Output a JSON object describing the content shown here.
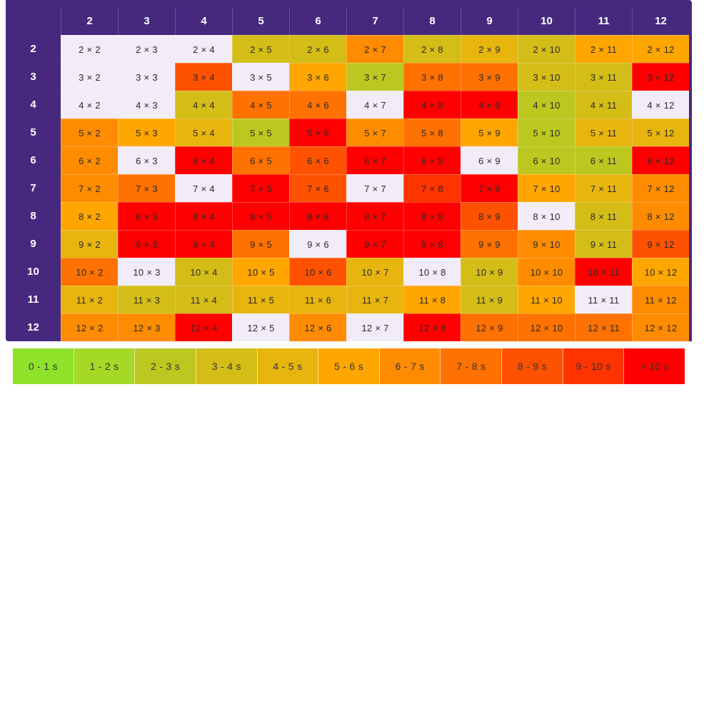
{
  "chart_data": {
    "type": "heatmap",
    "title": "",
    "row_labels": [
      "2",
      "3",
      "4",
      "5",
      "6",
      "7",
      "8",
      "9",
      "10",
      "11",
      "12"
    ],
    "col_labels": [
      "2",
      "3",
      "4",
      "5",
      "6",
      "7",
      "8",
      "9",
      "10",
      "11",
      "12"
    ],
    "cell_text_format": "{row} × {col}",
    "no_data_color": "#f1ecf7",
    "legend": [
      {
        "label": "0 - 1 s",
        "color": "#8ee22a"
      },
      {
        "label": "1 - 2 s",
        "color": "#a4d926"
      },
      {
        "label": "2 - 3 s",
        "color": "#bcc81f"
      },
      {
        "label": "3 - 4 s",
        "color": "#d4bd17"
      },
      {
        "label": "4 - 5 s",
        "color": "#e8b50f"
      },
      {
        "label": "5 - 6 s",
        "color": "#ffa600"
      },
      {
        "label": "6 - 7 s",
        "color": "#ff8c00"
      },
      {
        "label": "7 - 8 s",
        "color": "#ff7100"
      },
      {
        "label": "8 - 9 s",
        "color": "#ff5200"
      },
      {
        "label": "9 - 10 s",
        "color": "#ff3300"
      },
      {
        "label": "> 10 s",
        "color": "#ff0000"
      }
    ],
    "bins": [
      [
        -1,
        -1,
        -1,
        3,
        3,
        6,
        3,
        4,
        3,
        5,
        5
      ],
      [
        -1,
        -1,
        8,
        -1,
        5,
        2,
        7,
        7,
        3,
        3,
        10
      ],
      [
        -1,
        -1,
        3,
        7,
        7,
        -1,
        10,
        10,
        2,
        3,
        -1
      ],
      [
        6,
        5,
        4,
        2,
        10,
        6,
        7,
        5,
        2,
        4,
        4
      ],
      [
        6,
        -1,
        10,
        7,
        8,
        10,
        10,
        -1,
        2,
        2,
        10
      ],
      [
        6,
        7,
        -1,
        10,
        8,
        -1,
        9,
        10,
        5,
        4,
        6
      ],
      [
        5,
        10,
        10,
        10,
        10,
        10,
        10,
        8,
        -1,
        3,
        6
      ],
      [
        4,
        10,
        10,
        7,
        -1,
        10,
        10,
        7,
        6,
        3,
        8
      ],
      [
        7,
        -1,
        3,
        5,
        8,
        4,
        -1,
        3,
        6,
        10,
        5
      ],
      [
        4,
        3,
        3,
        4,
        4,
        4,
        5,
        3,
        5,
        -1,
        6
      ],
      [
        6,
        6,
        10,
        -1,
        6,
        -1,
        10,
        7,
        7,
        7,
        6
      ]
    ]
  }
}
